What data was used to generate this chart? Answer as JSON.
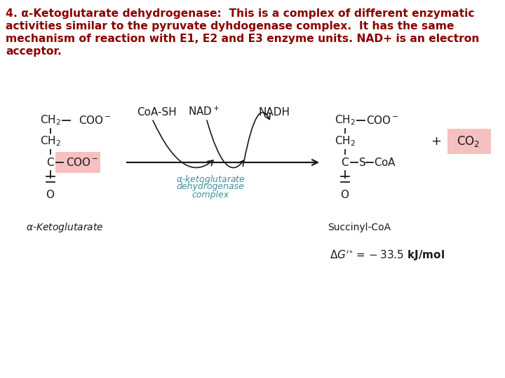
{
  "bg_color": "#ffffff",
  "text_color_dark_red": "#8B0000",
  "text_color_black": "#1a1a1a",
  "text_color_blue": "#3a8fa0",
  "highlight_pink": "#f5c0c0",
  "header_line1": "4. α-Ketoglutarate dehydrogenase:  This is a complex of different enzymatic",
  "header_line2": "activities similar to the pyruvate dyhdogenase complex.  It has the same",
  "header_line3": "mechanism of reaction with E1, E2 and E3 enzyme units. NAD+ is an electron",
  "header_line4": "acceptor.",
  "header_fontsize": 11.2,
  "diag_fs": 11,
  "label_fs": 10,
  "blue_fs": 9,
  "dg_fs": 11
}
